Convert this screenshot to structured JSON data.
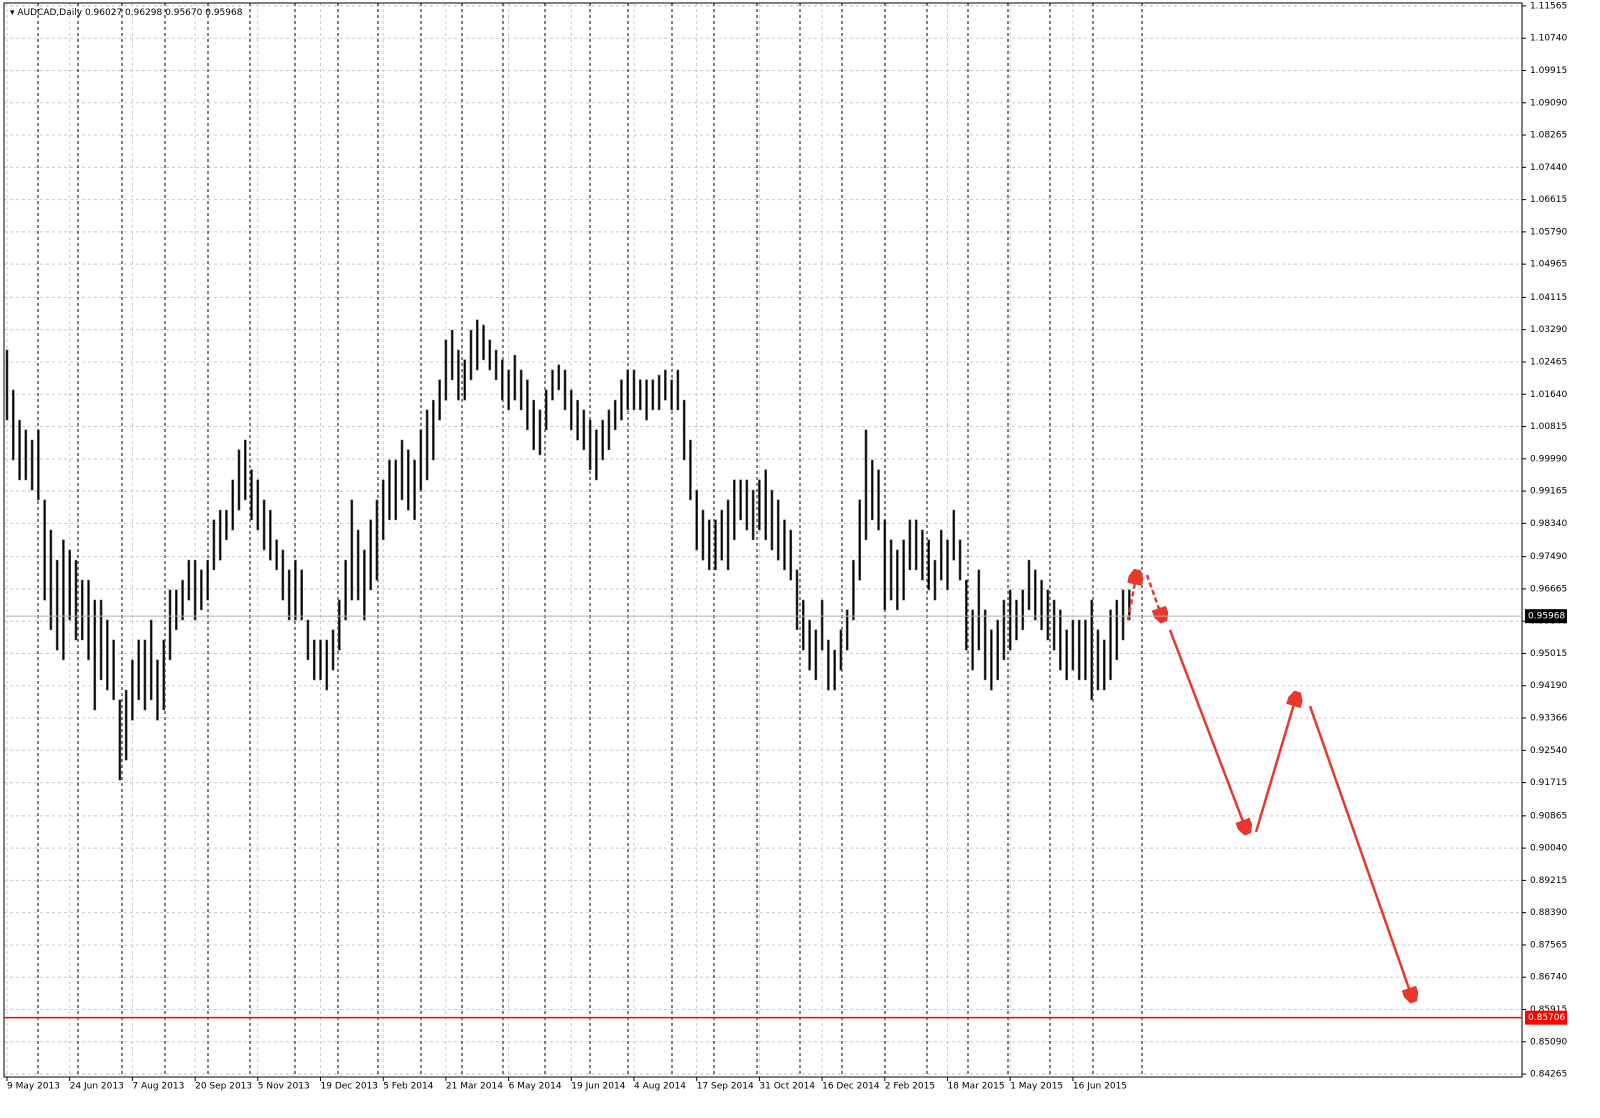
{
  "chart_data": {
    "type": "ohlc",
    "symbol": "AUDCAD,Daily",
    "header_values": [
      0.96027,
      0.96298,
      {
        "value": 0.9567,
        "label": "0.95670"
      },
      0.95968
    ],
    "current_price": 0.95968,
    "level": 0.85706,
    "level_color": "#ff0000",
    "color": "#000000",
    "grid": true,
    "ylim": [
      0.8419,
      1.1164
    ],
    "yticks": [
      1.11565,
      {
        "value": 1.1074,
        "label": "1.10740"
      },
      1.09915,
      {
        "value": 1.0909,
        "label": "1.09090"
      },
      1.08265,
      {
        "value": 1.0744,
        "label": "1.07440"
      },
      1.06615,
      {
        "value": 1.0579,
        "label": "1.05790"
      },
      1.04965,
      1.04115,
      {
        "value": 1.0329,
        "label": "1.03290"
      },
      1.02465,
      {
        "value": 1.0164,
        "label": "1.01640"
      },
      1.00815,
      {
        "value": 0.9999,
        "label": "0.99990"
      },
      0.99165,
      {
        "value": 0.9834,
        "label": "0.98340"
      },
      {
        "value": 0.9749,
        "label": "0.97490"
      },
      0.96665,
      {
        "value": 0.9584,
        "label": "0.95840"
      },
      0.95015,
      {
        "value": 0.9419,
        "label": "0.94190"
      },
      0.93366,
      {
        "value": 0.9254,
        "label": "0.92540"
      },
      0.91715,
      0.90865,
      {
        "value": 0.9004,
        "label": "0.90040"
      },
      0.89215,
      {
        "value": 0.8839,
        "label": "0.88390"
      },
      0.87565,
      {
        "value": 0.8674,
        "label": "0.86740"
      },
      0.85915,
      {
        "value": 0.8509,
        "label": "0.85090"
      },
      0.84265
    ],
    "categories": [
      "9 May 2013",
      null,
      null,
      null,
      null,
      null,
      null,
      null,
      null,
      null,
      "24 Jun 2013",
      null,
      null,
      null,
      null,
      null,
      null,
      null,
      null,
      null,
      "7 Aug 2013",
      null,
      null,
      null,
      null,
      null,
      null,
      null,
      null,
      null,
      "20 Sep 2013",
      null,
      null,
      null,
      null,
      null,
      null,
      null,
      null,
      null,
      "5 Nov 2013",
      null,
      null,
      null,
      null,
      null,
      null,
      null,
      null,
      null,
      "19 Dec 2013",
      null,
      null,
      null,
      null,
      null,
      null,
      null,
      null,
      null,
      "5 Feb 2014",
      null,
      null,
      null,
      null,
      null,
      null,
      null,
      null,
      null,
      "21 Mar 2014",
      null,
      null,
      null,
      null,
      null,
      null,
      null,
      null,
      null,
      "6 May 2014",
      null,
      null,
      null,
      null,
      null,
      null,
      null,
      null,
      null,
      "19 Jun 2014",
      null,
      null,
      null,
      null,
      null,
      null,
      null,
      null,
      null,
      "4 Aug 2014",
      null,
      null,
      null,
      null,
      null,
      null,
      null,
      null,
      null,
      "17 Sep 2014",
      null,
      null,
      null,
      null,
      null,
      null,
      null,
      null,
      null,
      "31 Oct 2014",
      null,
      null,
      null,
      null,
      null,
      null,
      null,
      null,
      null,
      "16 Dec 2014",
      null,
      null,
      null,
      null,
      null,
      null,
      null,
      null,
      null,
      "2 Feb 2015",
      null,
      null,
      null,
      null,
      null,
      null,
      null,
      null,
      null,
      "18 Mar 2015",
      null,
      null,
      null,
      null,
      null,
      null,
      null,
      null,
      null,
      "1 May 2015",
      null,
      null,
      null,
      null,
      null,
      null,
      null,
      null,
      null,
      "16 Jun 2015",
      null,
      null,
      null,
      null,
      null,
      null,
      null,
      null,
      null
    ],
    "high": [
      1.0277,
      1.0175,
      1.0098,
      1.0073,
      1.0047,
      1.0073,
      0.9894,
      0.9817,
      0.974,
      0.9792,
      0.9766,
      0.974,
      0.9689,
      0.9689,
      0.9638,
      0.9638,
      0.9587,
      0.9536,
      0.9383,
      0.9408,
      0.9485,
      0.9536,
      0.9536,
      0.9587,
      0.9485,
      0.9536,
      0.9664,
      0.9664,
      0.9689,
      0.974,
      0.974,
      0.9715,
      0.974,
      0.9843,
      0.9868,
      0.9868,
      0.9945,
      1.0022,
      1.0047,
      0.9971,
      0.9945,
      0.9894,
      0.9868,
      0.9792,
      0.9766,
      0.9715,
      0.974,
      0.9715,
      0.9587,
      0.9536,
      0.9536,
      0.9536,
      0.9562,
      0.9638,
      0.974,
      0.9894,
      0.9817,
      0.9766,
      0.9843,
      0.9894,
      0.9945,
      0.9996,
      0.9996,
      1.0047,
      1.0022,
      0.9996,
      1.0073,
      1.0124,
      1.0149,
      1.0201,
      1.0303,
      1.0328,
      1.0277,
      1.0252,
      1.0328,
      1.0354,
      1.0341,
      1.0303,
      1.0277,
      1.0252,
      1.0226,
      1.0264,
      1.0226,
      1.0201,
      1.0149,
      1.0124,
      1.0175,
      1.0226,
      1.0239,
      1.0226,
      1.0175,
      1.0149,
      1.0124,
      1.0098,
      1.0073,
      1.0098,
      1.0124,
      1.0149,
      1.0201,
      1.0226,
      1.0226,
      1.0201,
      1.0201,
      1.0201,
      1.0213,
      1.0226,
      1.0201,
      1.0226,
      1.0149,
      1.0047,
      0.9919,
      0.9868,
      0.9843,
      0.9843,
      0.9868,
      0.9894,
      0.9945,
      0.9945,
      0.9945,
      0.9919,
      0.9945,
      0.9971,
      0.9919,
      0.9894,
      0.9843,
      0.9817,
      0.9715,
      0.9638,
      0.9587,
      0.9562,
      0.9638,
      0.9536,
      0.951,
      0.9562,
      0.9613,
      0.974,
      0.9894,
      1.0073,
      0.9996,
      0.9971,
      0.9843,
      0.9792,
      0.9766,
      0.9792,
      0.9843,
      0.9843,
      0.9817,
      0.9792,
      0.974,
      0.9817,
      0.9792,
      0.9868,
      0.9792,
      0.9689,
      0.9613,
      0.9715,
      0.9613,
      0.9562,
      0.9587,
      0.9638,
      0.9664,
      0.9638,
      0.9664,
      0.974,
      0.9715,
      0.9689,
      0.9664,
      0.9638,
      0.9613,
      0.9562,
      0.9587,
      0.9587,
      0.9587,
      0.9638,
      0.9562,
      0.9536,
      0.9613,
      0.9638,
      0.9664,
      0.9664
    ],
    "low": [
      1.0098,
      0.9996,
      0.9945,
      0.9945,
      0.9919,
      0.9894,
      0.9638,
      0.9562,
      0.951,
      0.9485,
      0.9587,
      0.9536,
      0.9536,
      0.9485,
      0.9357,
      0.9434,
      0.9408,
      0.9383,
      0.9178,
      0.9229,
      0.9331,
      0.9383,
      0.9357,
      0.9383,
      0.9331,
      0.9357,
      0.9485,
      0.9562,
      0.9587,
      0.9638,
      0.9587,
      0.9613,
      0.9638,
      0.9715,
      0.974,
      0.9792,
      0.9817,
      0.9868,
      0.9894,
      0.9843,
      0.9817,
      0.9766,
      0.974,
      0.9715,
      0.9638,
      0.9587,
      0.9587,
      0.9587,
      0.9485,
      0.9434,
      0.9434,
      0.9408,
      0.9459,
      0.951,
      0.9587,
      0.9638,
      0.9638,
      0.9587,
      0.9664,
      0.9689,
      0.9792,
      0.9843,
      0.9843,
      0.9894,
      0.9868,
      0.9843,
      0.9919,
      0.9945,
      0.9996,
      1.0098,
      1.0149,
      1.0201,
      1.0149,
      1.0149,
      1.0201,
      1.0226,
      1.0252,
      1.0226,
      1.0201,
      1.0149,
      1.0124,
      1.0149,
      1.0124,
      1.0073,
      1.0022,
      1.0009,
      1.0073,
      1.0149,
      1.0175,
      1.0124,
      1.0073,
      1.0047,
      1.0022,
      0.9971,
      0.9945,
      0.9996,
      1.0022,
      1.0073,
      1.0098,
      1.0124,
      1.0124,
      1.0124,
      1.0098,
      1.0124,
      1.0124,
      1.0149,
      1.0124,
      1.0124,
      0.9996,
      0.9894,
      0.9766,
      0.974,
      0.9715,
      0.9715,
      0.974,
      0.9715,
      0.9792,
      0.9843,
      0.9817,
      0.9792,
      0.9817,
      0.9792,
      0.9766,
      0.974,
      0.9715,
      0.9689,
      0.9562,
      0.951,
      0.9459,
      0.9434,
      0.951,
      0.9408,
      0.9408,
      0.9459,
      0.951,
      0.9587,
      0.9689,
      0.9792,
      0.9843,
      0.9817,
      0.9613,
      0.9638,
      0.9613,
      0.9638,
      0.9715,
      0.9715,
      0.9689,
      0.9664,
      0.9638,
      0.9689,
      0.9664,
      0.974,
      0.9689,
      0.951,
      0.9459,
      0.951,
      0.9434,
      0.9408,
      0.9434,
      0.9485,
      0.951,
      0.9536,
      0.9562,
      0.9613,
      0.9587,
      0.9562,
      0.9536,
      0.951,
      0.9459,
      0.9434,
      0.9459,
      0.9434,
      0.9434,
      0.9383,
      0.9408,
      0.9408,
      0.9434,
      0.9485,
      0.9536,
      0.9587
    ]
  }
}
